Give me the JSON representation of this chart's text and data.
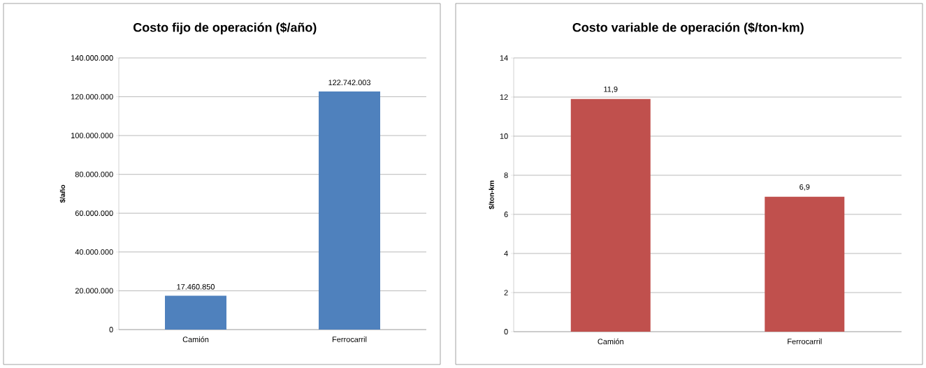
{
  "chart_data": [
    {
      "type": "bar",
      "title": "Costo fijo de operación ($/año)",
      "ylabel": "$/año",
      "categories": [
        "Camión",
        "Ferrocarril"
      ],
      "values": [
        17460850,
        122742003
      ],
      "color": "#4f81bd",
      "value_labels": [
        "17.460.850",
        "122.742.003"
      ],
      "ylim": [
        0,
        140000000
      ],
      "yticks": [
        0,
        {
          "value": 20000000,
          "label": "20.000.000"
        },
        {
          "value": 40000000,
          "label": "40.000.000"
        },
        {
          "value": 60000000,
          "label": "60.000.000"
        },
        {
          "value": 80000000,
          "label": "80.000.000"
        },
        {
          "value": 100000000,
          "label": "100.000.000"
        },
        {
          "value": 120000000,
          "label": "120.000.000"
        },
        {
          "value": 140000000,
          "label": "140.000.000"
        }
      ],
      "grid": "y"
    },
    {
      "type": "bar",
      "title": "Costo variable de operación ($/ton-km)",
      "ylabel": "$/ton-km",
      "categories": [
        "Camión",
        "Ferrocarril"
      ],
      "values": [
        11.9,
        6.9
      ],
      "color": "#c0504d",
      "value_labels": [
        "11,9",
        "6,9"
      ],
      "ylim": [
        0,
        14
      ],
      "yticks": [
        0,
        2,
        4,
        6,
        8,
        10,
        12,
        14
      ],
      "grid": "y"
    }
  ]
}
